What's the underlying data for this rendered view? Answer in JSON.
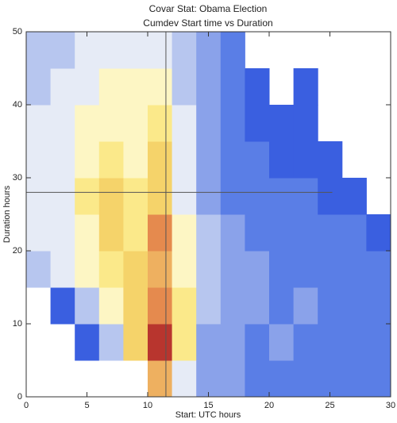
{
  "chart_data": {
    "type": "contour",
    "title": "Covar Stat: Obama Election",
    "subtitle": "Cumdev Start time vs Duration",
    "x_label": "Start: UTC hours",
    "y_label": "Duration hours",
    "xlim": [
      0,
      30
    ],
    "ylim": [
      0,
      50
    ],
    "xticks": [
      0,
      5,
      10,
      15,
      20,
      25,
      30
    ],
    "yticks": [
      0,
      10,
      20,
      30,
      40,
      50
    ],
    "x": [
      1,
      3,
      5,
      7,
      9,
      11,
      13,
      15,
      17,
      19,
      21,
      23,
      25,
      27,
      29
    ],
    "y": [
      2.5,
      7.5,
      12.5,
      17.5,
      22.5,
      27.5,
      32.5,
      37.5,
      42.5,
      47.5
    ],
    "z": [
      [
        null,
        null,
        null,
        null,
        null,
        9,
        5,
        3,
        3,
        2,
        2,
        2,
        2,
        2,
        2
      ],
      [
        null,
        null,
        1,
        4,
        8,
        12,
        7,
        3,
        3,
        2,
        3,
        2,
        2,
        2,
        2
      ],
      [
        null,
        1,
        4,
        6,
        8,
        10,
        7,
        4,
        3,
        3,
        2,
        3,
        2,
        2,
        2
      ],
      [
        4,
        5,
        6,
        7,
        8,
        9,
        6,
        4,
        3,
        3,
        2,
        2,
        2,
        2,
        2
      ],
      [
        5,
        5,
        6,
        8,
        7,
        10,
        6,
        4,
        3,
        2,
        2,
        2,
        2,
        2,
        1
      ],
      [
        5,
        5,
        7,
        8,
        7,
        8,
        5,
        3,
        2,
        2,
        2,
        2,
        1,
        1,
        null
      ],
      [
        5,
        5,
        6,
        7,
        6,
        8,
        5,
        3,
        2,
        2,
        1,
        1,
        1,
        null,
        null
      ],
      [
        5,
        5,
        6,
        6,
        6,
        7,
        5,
        3,
        2,
        1,
        1,
        1,
        null,
        null,
        null
      ],
      [
        4,
        5,
        5,
        6,
        6,
        6,
        4,
        3,
        2,
        1,
        null,
        1,
        null,
        null,
        null
      ],
      [
        4,
        4,
        5,
        5,
        5,
        5,
        4,
        3,
        2,
        null,
        null,
        null,
        null,
        null,
        null
      ]
    ],
    "level_colors": [
      "#3a5fe0",
      "#5a7ee6",
      "#8aa2ea",
      "#b7c6ef",
      "#e6ebf6",
      "#fdf6c4",
      "#fbe98a",
      "#f5d36a",
      "#eeb060",
      "#e58a4e",
      "#d4603e",
      "#b8352e"
    ],
    "crosshair": {
      "x": 11.5,
      "y": 28
    }
  }
}
